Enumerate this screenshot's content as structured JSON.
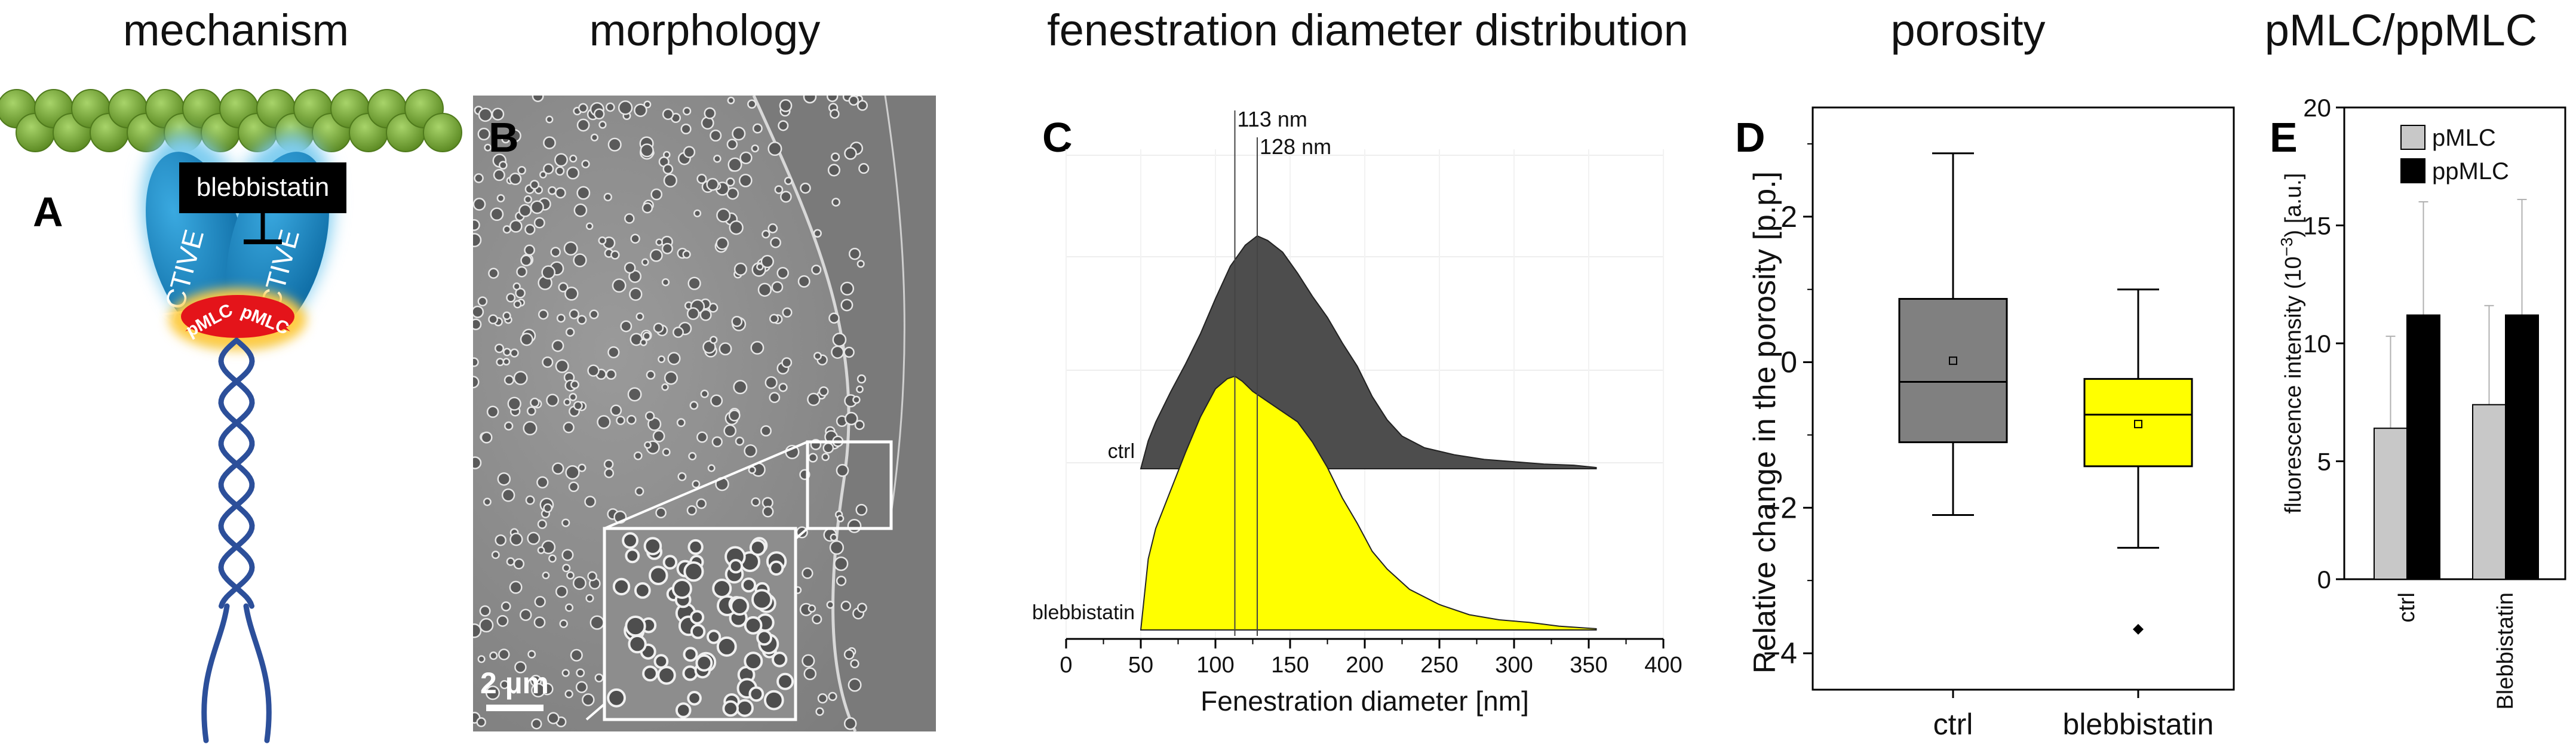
{
  "titles": {
    "mechanism": "mechanism",
    "morphology": "morphology",
    "distribution": "fenestration diameter distribution",
    "porosity": "porosity",
    "pmlc": "pMLC/ppMLC"
  },
  "panel_labels": {
    "a": "A",
    "b": "B",
    "c": "C",
    "d": "D",
    "e": "E"
  },
  "mechanism": {
    "inhibitor_label": "blebbistatin",
    "head_left": "ACTIVE",
    "head_right": "ACTIVE",
    "plmc_left": "pMLC",
    "plmc_right": "pMLC",
    "colors": {
      "actin": "#7fae3a",
      "head": "#1e8fc9",
      "glow": "#7fcdf0",
      "plc": "#e4141a",
      "tail": "#2c4f9a"
    }
  },
  "morphology": {
    "scale_bar": "2 µm"
  },
  "chart_data": [
    {
      "id": "C",
      "type": "area",
      "title": "fenestration diameter distribution",
      "xlabel": "Fenestration diameter [nm]",
      "xlim": [
        0,
        400
      ],
      "xticks": [
        0,
        50,
        100,
        150,
        200,
        250,
        300,
        350,
        400
      ],
      "annotations": [
        {
          "x": 113,
          "label": "113 nm"
        },
        {
          "x": 128,
          "label": "128 nm"
        }
      ],
      "series": [
        {
          "name": "ctrl",
          "color": "#4d4d4d",
          "x": [
            50,
            55,
            60,
            70,
            80,
            90,
            100,
            110,
            120,
            128,
            135,
            145,
            155,
            165,
            175,
            185,
            195,
            205,
            215,
            225,
            240,
            260,
            280,
            300,
            320,
            340,
            355
          ],
          "y": [
            0.0,
            0.12,
            0.2,
            0.33,
            0.45,
            0.58,
            0.73,
            0.87,
            0.96,
            1.0,
            0.98,
            0.93,
            0.84,
            0.74,
            0.65,
            0.54,
            0.44,
            0.31,
            0.21,
            0.14,
            0.09,
            0.06,
            0.04,
            0.03,
            0.02,
            0.015,
            0.005
          ]
        },
        {
          "name": "blebbistatin",
          "color": "#ffff00",
          "x": [
            50,
            55,
            60,
            70,
            80,
            90,
            100,
            108,
            113,
            118,
            125,
            135,
            145,
            155,
            165,
            175,
            185,
            195,
            205,
            215,
            230,
            250,
            270,
            290,
            310,
            330,
            355
          ],
          "y": [
            0.0,
            0.28,
            0.4,
            0.55,
            0.7,
            0.84,
            0.95,
            0.99,
            1.0,
            0.98,
            0.94,
            0.9,
            0.86,
            0.82,
            0.74,
            0.64,
            0.52,
            0.42,
            0.31,
            0.24,
            0.16,
            0.1,
            0.06,
            0.04,
            0.03,
            0.015,
            0.005
          ]
        }
      ]
    },
    {
      "id": "D",
      "type": "box",
      "title": "porosity",
      "ylabel": "Relative change in the porosity [p.p.]",
      "ylim": [
        -4.5,
        3.5
      ],
      "yticks": [
        -4,
        -2,
        0,
        2
      ],
      "ytick_labels": [
        "−4",
        "−2",
        "0",
        "2"
      ],
      "categories": [
        "ctrl",
        "blebbistatin"
      ],
      "boxes": [
        {
          "name": "ctrl",
          "color": "#808080",
          "whisker_low": -2.1,
          "q1": -1.1,
          "median": -0.27,
          "q3": 0.87,
          "whisker_high": 2.87,
          "mean": 0.02,
          "outliers": []
        },
        {
          "name": "blebbistatin",
          "color": "#ffff00",
          "whisker_low": -2.55,
          "q1": -1.43,
          "median": -0.72,
          "q3": -0.23,
          "whisker_high": 1.0,
          "mean": -0.85,
          "outliers": [
            -3.67
          ]
        }
      ]
    },
    {
      "id": "E",
      "type": "bar",
      "title": "pMLC/ppMLC",
      "ylabel_main": "fluorescence intensity (10",
      "ylabel_sup": "−3",
      "ylabel_end": ") [a.u.]",
      "ylim": [
        0,
        20
      ],
      "yticks": [
        0,
        5,
        10,
        15,
        20
      ],
      "categories": [
        "ctrl",
        "Blebbistatin"
      ],
      "series": [
        {
          "name": "pMLC",
          "color": "#c8c8c8",
          "values": [
            6.4,
            7.4
          ],
          "error": [
            3.9,
            4.2
          ]
        },
        {
          "name": "ppMLC",
          "color": "#000000",
          "values": [
            11.2,
            11.2
          ],
          "error": [
            4.8,
            4.9
          ]
        }
      ]
    }
  ]
}
